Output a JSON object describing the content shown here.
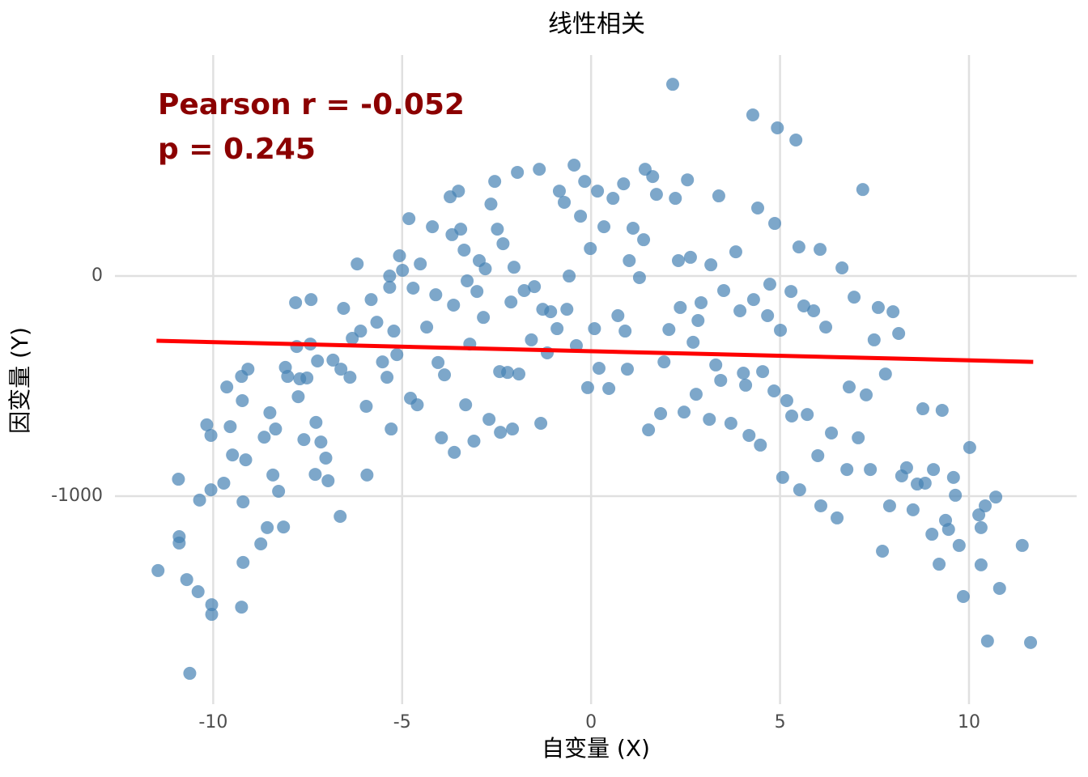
{
  "chart_data": {
    "type": "scatter",
    "title": "线性相关",
    "x_label": "自变量 (X)",
    "y_label": "因变量 (Y)",
    "annotations": [
      "Pearson r = -0.052",
      "p = 0.245"
    ],
    "color": "#4682b4",
    "xlim": [
      -12.6,
      12.85
    ],
    "ylim": [
      -1945,
      1004
    ],
    "xticks": [
      -10,
      -5,
      0,
      5,
      10
    ],
    "yticks": [
      -1000,
      0
    ],
    "grid": true,
    "x": [
      -11.46,
      -10.62,
      -10.92,
      -10.9,
      -10.9,
      -10.7,
      -10.4,
      -10.36,
      -10.17,
      -10.06,
      -10.06,
      -10.04,
      -10.04,
      -9.72,
      -9.64,
      -9.55,
      -9.49,
      -9.25,
      -9.23,
      -9.21,
      -9.21,
      -9.25,
      -9.14,
      -9.08,
      -8.74,
      -8.65,
      -8.57,
      -8.5,
      -8.42,
      -8.35,
      -8.27,
      -8.14,
      -8.09,
      -8.03,
      -7.82,
      -7.79,
      -7.75,
      -7.71,
      -7.6,
      -7.52,
      -7.41,
      -7.43,
      -7.28,
      -7.3,
      -7.24,
      -7.15,
      -7.02,
      -6.96,
      -6.83,
      -6.64,
      -6.55,
      -6.62,
      -6.38,
      -6.32,
      -6.19,
      -6.1,
      -5.95,
      -5.93,
      -5.82,
      -5.67,
      -5.52,
      -5.4,
      -5.33,
      -5.33,
      -5.29,
      -5.22,
      -5.14,
      -5.07,
      -4.99,
      -4.82,
      -4.78,
      -4.71,
      -4.6,
      -4.52,
      -4.35,
      -4.2,
      -4.11,
      -4.05,
      -3.96,
      -3.88,
      -3.73,
      -3.68,
      -3.64,
      -3.62,
      -3.51,
      -3.45,
      -3.36,
      -3.32,
      -3.28,
      -3.21,
      -3.1,
      -3.02,
      -2.96,
      -2.85,
      -2.8,
      -2.7,
      -2.65,
      -2.55,
      -2.48,
      -2.42,
      -2.4,
      -2.33,
      -2.21,
      -2.12,
      -2.08,
      -2.04,
      -1.95,
      -1.91,
      -1.77,
      -1.58,
      -1.5,
      -1.37,
      -1.33,
      -1.28,
      -1.16,
      -1.07,
      -0.9,
      -0.84,
      -0.71,
      -0.64,
      -0.58,
      -0.45,
      -0.39,
      -0.28,
      -0.17,
      -0.09,
      -0.02,
      0.09,
      0.17,
      0.21,
      0.34,
      0.47,
      0.58,
      0.71,
      0.86,
      0.9,
      0.96,
      1.01,
      1.11,
      1.28,
      1.39,
      1.43,
      1.52,
      1.63,
      1.73,
      1.84,
      1.93,
      2.06,
      2.16,
      2.23,
      2.31,
      2.36,
      2.46,
      2.55,
      2.63,
      2.7,
      2.78,
      2.83,
      2.91,
      3.13,
      3.17,
      3.3,
      3.38,
      3.43,
      3.51,
      3.7,
      3.83,
      3.94,
      4.03,
      4.09,
      4.18,
      4.3,
      4.28,
      4.41,
      4.48,
      4.54,
      4.67,
      4.73,
      4.84,
      4.86,
      4.93,
      5.01,
      5.07,
      5.18,
      5.29,
      5.31,
      5.42,
      5.5,
      5.52,
      5.63,
      5.72,
      5.89,
      6.0,
      6.06,
      6.08,
      6.21,
      6.36,
      6.51,
      6.64,
      6.77,
      6.83,
      6.96,
      7.07,
      7.19,
      7.28,
      7.39,
      7.49,
      7.6,
      7.71,
      7.79,
      7.9,
      7.99,
      8.14,
      8.22,
      8.35,
      8.52,
      8.63,
      8.78,
      8.84,
      9.02,
      9.06,
      9.21,
      9.29,
      9.38,
      9.46,
      9.59,
      9.64,
      9.74,
      9.85,
      10.02,
      10.26,
      10.32,
      10.32,
      10.43,
      10.49,
      10.71,
      10.81,
      11.41,
      11.63
    ],
    "values": [
      -1338,
      -1805,
      -923,
      -1184,
      -1213,
      -1379,
      -1434,
      -1018,
      -676,
      -724,
      -971,
      -1493,
      -1537,
      -941,
      -504,
      -684,
      -813,
      -456,
      -566,
      -1026,
      -1301,
      -1504,
      -835,
      -423,
      -1217,
      -732,
      -1143,
      -621,
      -904,
      -695,
      -978,
      -1140,
      -415,
      -456,
      -121,
      -320,
      -548,
      -467,
      -743,
      -463,
      -107,
      -309,
      -665,
      -901,
      -386,
      -754,
      -827,
      -930,
      -382,
      -1092,
      -147,
      -423,
      -460,
      -283,
      55,
      -250,
      -592,
      -904,
      -107,
      -210,
      -390,
      -460,
      0,
      -51,
      -695,
      -250,
      -357,
      92,
      26,
      261,
      -555,
      -55,
      -585,
      55,
      -232,
      224,
      -85,
      -393,
      -735,
      -449,
      360,
      188,
      -132,
      -801,
      386,
      213,
      118,
      -585,
      -22,
      -309,
      -750,
      -70,
      70,
      -188,
      33,
      -651,
      327,
      430,
      213,
      -434,
      -710,
      147,
      -438,
      -118,
      -695,
      40,
      471,
      -445,
      -66,
      -290,
      -48,
      485,
      -669,
      -151,
      -349,
      -162,
      -239,
      386,
      335,
      -151,
      0,
      504,
      -316,
      272,
      430,
      -507,
      125,
      -239,
      386,
      -419,
      224,
      -511,
      353,
      -180,
      419,
      -250,
      -423,
      70,
      217,
      -7,
      165,
      485,
      -699,
      452,
      371,
      -625,
      -390,
      -243,
      871,
      353,
      70,
      -143,
      -618,
      437,
      85,
      -301,
      -537,
      -202,
      -121,
      -651,
      51,
      -404,
      364,
      -474,
      -66,
      -669,
      110,
      -158,
      -441,
      -496,
      -724,
      -107,
      732,
      309,
      -768,
      -434,
      -180,
      -37,
      -522,
      239,
      673,
      -246,
      -915,
      -566,
      -70,
      -636,
      618,
      132,
      -971,
      -136,
      -629,
      -158,
      -816,
      121,
      -1044,
      -232,
      -713,
      -1099,
      37,
      -879,
      -504,
      -96,
      -735,
      393,
      -540,
      -879,
      -290,
      -143,
      -1250,
      -445,
      -1044,
      -162,
      -261,
      -908,
      -871,
      -1062,
      -945,
      -603,
      -941,
      -1173,
      -879,
      -1309,
      -610,
      -1110,
      -1151,
      -915,
      -996,
      -1224,
      -1456,
      -779,
      -1085,
      -1143,
      -1312,
      -1044,
      -1658,
      -1004,
      -1419,
      -1224,
      -1665
    ],
    "fit": {
      "x": [
        -11.5,
        11.7
      ],
      "values": [
        -294,
        -390
      ],
      "color": "#ff0000"
    }
  }
}
